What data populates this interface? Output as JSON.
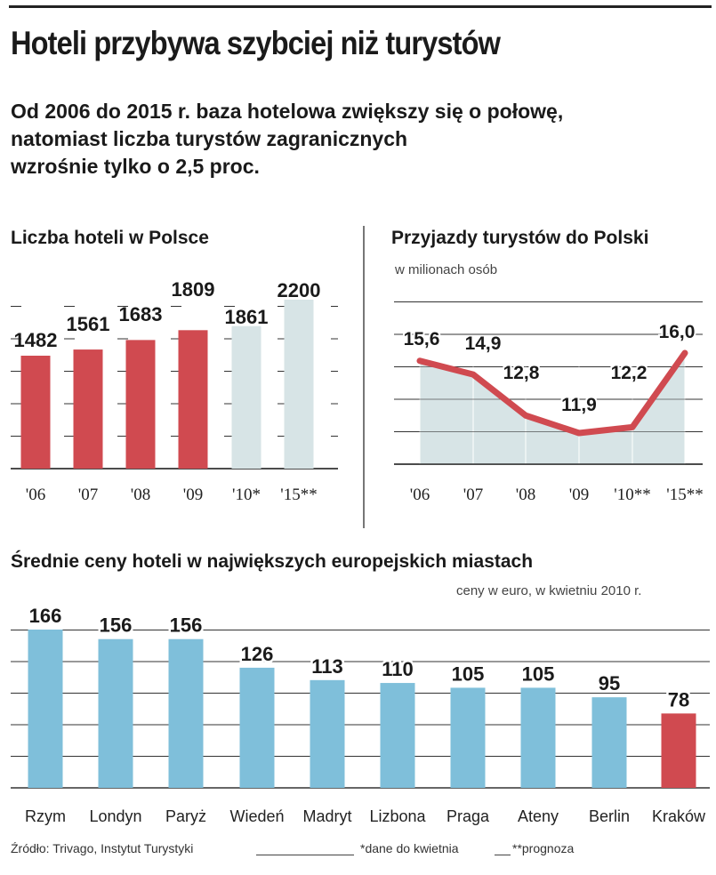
{
  "headline": "Hoteli przybywa szybciej niż turystów",
  "subtitle_lines": [
    "Od 2006 do 2015 r. baza hotelowa zwiększy się o połowę,",
    "natomiast liczba turystów zagranicznych",
    "wzrośnie tylko o 2,5 proc."
  ],
  "footer": {
    "source": "Źródło: Trivago, Instytut Turystyki",
    "note1": "*dane do kwietnia",
    "note2": "**prognoza"
  },
  "colors": {
    "red": "#d04a50",
    "light": "#d7e4e6",
    "blue": "#7fbfda",
    "grid": "#333333",
    "area": "#d7e4e6"
  },
  "chart_data": [
    {
      "type": "bar",
      "title": "Liczba hoteli w Polsce",
      "categories": [
        "'06",
        "'07",
        "'08",
        "'09",
        "'10*",
        "'15**"
      ],
      "values": [
        1482,
        1561,
        1683,
        1809,
        1861,
        2200
      ],
      "labels": [
        "1482",
        "1561",
        "1683",
        "1809",
        "1861",
        "2200"
      ],
      "highlight": [
        "historical",
        "historical",
        "historical",
        "historical",
        "forecast",
        "forecast"
      ]
    },
    {
      "type": "line",
      "title": "Przyjazdy turystów do Polski",
      "unit": "w milionach osób",
      "categories": [
        "'06",
        "'07",
        "'08",
        "'09",
        "'10**",
        "'15**"
      ],
      "values": [
        15.6,
        14.9,
        12.8,
        11.9,
        12.2,
        16.0
      ],
      "labels": [
        "15,6",
        "14,9",
        "12,8",
        "11,9",
        "12,2",
        "16,0"
      ]
    },
    {
      "type": "bar",
      "title": "Średnie ceny hoteli w największych europejskich miastach",
      "unit": "ceny w euro, w kwietniu 2010 r.",
      "categories": [
        "Rzym",
        "Londyn",
        "Paryż",
        "Wiedeń",
        "Madryt",
        "Lizbona",
        "Praga",
        "Ateny",
        "Berlin",
        "Kraków"
      ],
      "values": [
        166,
        156,
        156,
        126,
        113,
        110,
        105,
        105,
        95,
        78
      ],
      "labels": [
        "166",
        "156",
        "156",
        "126",
        "113",
        "110",
        "105",
        "105",
        "95",
        "78"
      ],
      "highlight": [
        "other",
        "other",
        "other",
        "other",
        "other",
        "other",
        "other",
        "other",
        "other",
        "home"
      ]
    }
  ]
}
